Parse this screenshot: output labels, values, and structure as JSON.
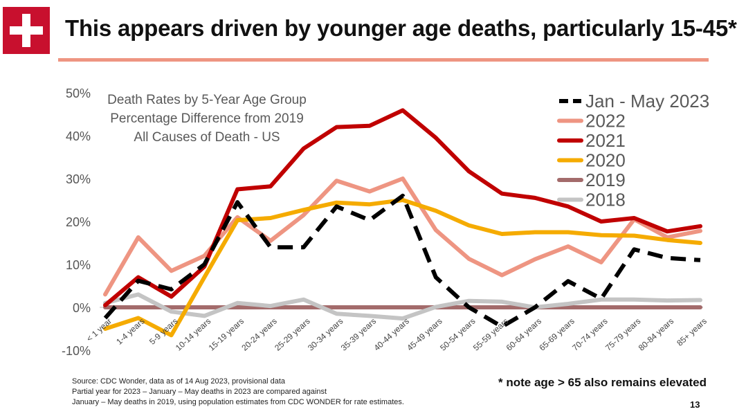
{
  "slide": {
    "title": "This appears driven by younger age deaths, particularly 15-45*",
    "logo_icon": "swiss-cross-icon",
    "accent": "#ee9582",
    "source_lines": [
      "Source: CDC Wonder, data as of 14 Aug 2023, provisional data",
      "Partial year for 2023 – January – May deaths in 2023 are compared against",
      "January – May deaths in 2019, using population estimates from CDC WONDER for rate estimates."
    ],
    "note": "* note age > 65 also remains elevated",
    "page_number": "13"
  },
  "chart_data": {
    "type": "line",
    "title_lines": [
      "Death Rates by 5-Year Age Group",
      "Percentage Difference from 2019",
      "All Causes of Death - US"
    ],
    "xlabel": "",
    "ylabel": "",
    "ylim": [
      -10,
      50
    ],
    "yticks": [
      -10,
      0,
      10,
      20,
      30,
      40,
      50
    ],
    "ytick_labels": [
      "-10%",
      "0%",
      "10%",
      "20%",
      "30%",
      "40%",
      "50%"
    ],
    "categories": [
      "< 1 year",
      "1-4 years",
      "5-9 years",
      "10-14 years",
      "15-19 years",
      "20-24 years",
      "25-29 years",
      "30-34 years",
      "35-39 years",
      "40-44 years",
      "45-49 years",
      "50-54 years",
      "55-59 years",
      "60-64 years",
      "65-69 years",
      "70-74 years",
      "75-79 years",
      "80-84 years",
      "85+ years"
    ],
    "series": [
      {
        "name": "2019",
        "color": "#a36b6b",
        "dashed": false,
        "values": [
          0,
          0,
          0,
          0,
          0,
          0,
          0,
          0,
          0,
          0,
          0,
          0,
          0,
          0,
          0,
          0,
          0,
          0,
          0
        ]
      },
      {
        "name": "2018",
        "color": "#c4c4c4",
        "dashed": false,
        "values": [
          1.0,
          3.0,
          -1.0,
          -2.0,
          1.0,
          0.3,
          1.8,
          -1.5,
          -2.0,
          -2.6,
          0.1,
          1.5,
          1.3,
          0,
          0.8,
          1.8,
          1.8,
          1.6,
          1.7
        ]
      },
      {
        "name": "2022",
        "color": "#ee9582",
        "dashed": false,
        "values": [
          3.0,
          16.3,
          8.5,
          12.0,
          21.0,
          15.5,
          21.5,
          29.5,
          27.0,
          30.0,
          18.0,
          11.3,
          7.5,
          11.2,
          14.2,
          10.5,
          20.5,
          16.3,
          17.8
        ]
      },
      {
        "name": "2020",
        "color": "#f5ab00",
        "dashed": false,
        "values": [
          -5.0,
          -2.5,
          -6.5,
          7.0,
          20.3,
          20.8,
          22.7,
          24.4,
          24.0,
          25.0,
          22.5,
          19.1,
          17.1,
          17.5,
          17.5,
          16.8,
          16.7,
          15.7,
          15.0
        ]
      },
      {
        "name": "2021",
        "color": "#c00000",
        "dashed": false,
        "values": [
          0.5,
          7.0,
          2.5,
          9.5,
          27.5,
          28.2,
          37.0,
          42.0,
          42.3,
          45.9,
          39.5,
          31.7,
          26.5,
          25.5,
          23.5,
          20.0,
          20.8,
          17.7,
          18.9
        ]
      },
      {
        "name": "Jan - May 2023",
        "color": "#000000",
        "dashed": true,
        "values": [
          -2.5,
          6.2,
          4.2,
          10.0,
          24.5,
          14.0,
          14.0,
          23.5,
          20.3,
          26.0,
          7.0,
          0,
          -4.5,
          0,
          6.1,
          2.0,
          13.5,
          11.5,
          11.0
        ]
      }
    ],
    "legend": {
      "placement": "top-right",
      "order": [
        "Jan - May 2023",
        "2022",
        "2021",
        "2020",
        "2019",
        "2018"
      ]
    },
    "grid": false
  }
}
